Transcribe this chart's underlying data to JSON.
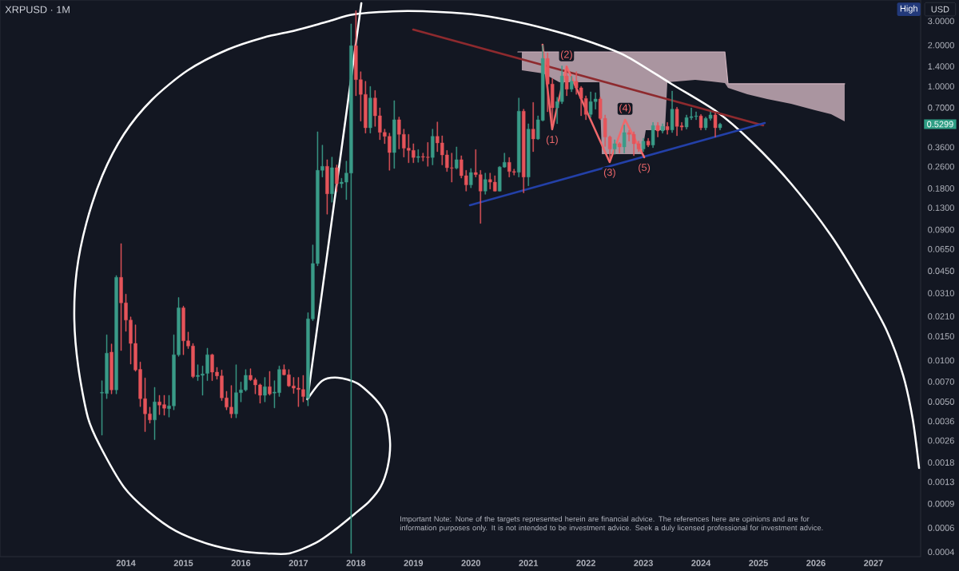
{
  "chart_data": {
    "type": "candlestick",
    "title": "XRPUSD · 1M",
    "xlim": [
      "2011-10-23",
      "2027-10-27"
    ],
    "ylim": [
      0.00037,
      4.27
    ],
    "log": true,
    "xticks": [
      "2014",
      "2015",
      "2016",
      "2017",
      "2018",
      "2019",
      "2020",
      "2021",
      "2022",
      "2023",
      "2024",
      "2025",
      "2026",
      "2027"
    ],
    "yticks": [
      {
        "value": 0.0004,
        "label": "0.0004"
      },
      {
        "value": 0.0006,
        "label": "0.0006"
      },
      {
        "value": 0.0009,
        "label": "0.0009"
      },
      {
        "value": 0.0013,
        "label": "0.0013"
      },
      {
        "value": 0.0018,
        "label": "0.0018"
      },
      {
        "value": 0.0026,
        "label": "0.0026"
      },
      {
        "value": 0.0036,
        "label": "0.0036"
      },
      {
        "value": 0.005,
        "label": "0.0050"
      },
      {
        "value": 0.007,
        "label": "0.0070"
      },
      {
        "value": 0.01,
        "label": "0.0100"
      },
      {
        "value": 0.015,
        "label": "0.0150"
      },
      {
        "value": 0.021,
        "label": "0.0210"
      },
      {
        "value": 0.031,
        "label": "0.0310"
      },
      {
        "value": 0.045,
        "label": "0.0450"
      },
      {
        "value": 0.065,
        "label": "0.0650"
      },
      {
        "value": 0.09,
        "label": "0.0900"
      },
      {
        "value": 0.13,
        "label": "0.1300"
      },
      {
        "value": 0.18,
        "label": "0.1800"
      },
      {
        "value": 0.26,
        "label": "0.2600"
      },
      {
        "value": 0.36,
        "label": "0.3600"
      },
      {
        "value": 0.7,
        "label": "0.7000"
      },
      {
        "value": 1,
        "label": "1.0000"
      },
      {
        "value": 1.4,
        "label": "1.4000"
      },
      {
        "value": 2,
        "label": "2.0000"
      },
      {
        "value": 3,
        "label": "3.0000"
      }
    ],
    "series": [
      {
        "type": "line",
        "color": "#d0b4bf",
        "x": [
          "2020-10-25",
          "2020-11-20",
          "2021-04-05",
          "2021-07-15",
          "2022-03-26",
          "2022-04-11",
          "2022-12-21",
          "2023-01-16",
          "2023-05-16",
          "2023-05-31",
          "2023-11-26",
          "2024-03-06",
          "2024-06-01",
          "2024-06-21",
          "2024-10-21",
          "2025-02-26",
          "2025-07-26",
          "2025-12-26",
          "2026-04-06",
          "2026-07-01"
        ],
        "values": [
          1.785,
          1.785,
          1.785,
          1.785,
          1.785,
          1.785,
          1.785,
          1.785,
          1.785,
          1.785,
          1.785,
          1.785,
          1.785,
          1.044,
          1.044,
          1.044,
          1.044,
          1.044,
          1.044,
          1.044
        ],
        "upper": [
          null,
          1.785,
          1.785,
          1.785,
          1.785,
          1.785,
          1.785,
          1.785,
          1.785,
          1.785,
          1.785,
          1.785,
          1.785,
          1.044,
          1.044,
          1.044,
          1.044,
          1.044,
          1.044,
          1.044
        ],
        "lower": [
          null,
          1.311,
          1.243,
          1.072,
          1.072,
          0.3205,
          0.3205,
          0.479,
          0.479,
          1.072,
          1.116,
          1.087,
          1.058,
          0.976,
          0.877,
          0.809,
          0.746,
          0.671,
          0.627,
          0.556
        ]
      },
      {
        "type": "line",
        "color": "#ffffff",
        "x": [
          "2017-02-28",
          "2017-05-29",
          "2017-09-09",
          "2018-01-09",
          "2018-05-04",
          "2018-07-09",
          "2018-08-05",
          "2018-07-20",
          "2018-06-05",
          "2018-03-25",
          "2018-01-09",
          "2017-08-24",
          "2017-04-19",
          "2016-11-04",
          "2016-06-14",
          "2015-12-24",
          "2015-06-04",
          "2014-11-14",
          "2014-05-19",
          "2013-12-19",
          "2013-07-18",
          "2013-05-03",
          "2013-03-03",
          "2013-02-08",
          "2013-02-23",
          "2013-04-23",
          "2013-08-03",
          "2013-12-19",
          "2014-06-14",
          "2015-01-29",
          "2015-10-09",
          "2016-05-24",
          "2016-12-14",
          "2017-07-04",
          "2017-12-19",
          "2018-10-05",
          "2019-06-15",
          "2020-02-25",
          "2020-11-05",
          "2021-07-05",
          "2022-02-05",
          "2022-09-11",
          "2023-06-26",
          "2024-04-11",
          "2024-11-16",
          "2025-07-26",
          "2026-04-06",
          "2026-10-27",
          "2027-03-27",
          "2027-07-07",
          "2027-09-07",
          "2027-10-17"
        ],
        "values": [
          0.00521,
          0.00709,
          0.00748,
          0.00681,
          0.00521,
          0.00398,
          0.00249,
          0.00167,
          0.00119,
          0.000935,
          0.000786,
          0.000585,
          0.000465,
          0.000391,
          0.000391,
          0.000407,
          0.000459,
          0.000569,
          0.000796,
          0.00119,
          0.00239,
          0.00383,
          0.00891,
          0.0199,
          0.0446,
          0.0997,
          0.223,
          0.448,
          0.798,
          1.311,
          1.858,
          2.274,
          2.566,
          2.973,
          3.355,
          3.54,
          3.493,
          3.311,
          2.934,
          2.497,
          2.097,
          1.669,
          1.044,
          0.653,
          0.397,
          0.195,
          0.0815,
          0.0341,
          0.0163,
          0.00779,
          0.00373,
          0.00164
        ]
      },
      {
        "type": "line",
        "color": "#ffffff",
        "x": [
          "2017-02-28",
          "2018-02-05"
        ],
        "values": [
          0.00521,
          4.047
        ]
      },
      {
        "type": "line",
        "color": "#8e2a2e",
        "x": [
          "2018-12-30",
          "2025-02-01"
        ],
        "values": [
          2.598,
          0.5195
        ]
      },
      {
        "type": "line",
        "color": "#2340a8",
        "x": [
          "2019-12-25",
          "2025-02-11"
        ],
        "values": [
          0.1358,
          0.541
        ]
      },
      {
        "type": "line",
        "color": "#f0686b",
        "x": [
          "2021-03-30",
          "2021-05-30",
          "2021-08-30",
          "2022-05-30",
          "2022-09-06",
          "2023-01-06"
        ],
        "values": [
          2.015,
          0.486,
          1.403,
          0.28,
          0.571,
          0.304
        ]
      },
      {
        "x": [
          "2013-08",
          "2013-09",
          "2013-10",
          "2013-11",
          "2013-12",
          "2014-01",
          "2014-02",
          "2014-03",
          "2014-04",
          "2014-05",
          "2014-06",
          "2014-07",
          "2014-08",
          "2014-09",
          "2014-10",
          "2014-11",
          "2014-12",
          "2015-01",
          "2015-02",
          "2015-03",
          "2015-04",
          "2015-05",
          "2015-06",
          "2015-07",
          "2015-08",
          "2015-09",
          "2015-10",
          "2015-11",
          "2015-12",
          "2016-01",
          "2016-02",
          "2016-03",
          "2016-04",
          "2016-05",
          "2016-06",
          "2016-07",
          "2016-08",
          "2016-09",
          "2016-10",
          "2016-11",
          "2016-12",
          "2017-01",
          "2017-02",
          "2017-03",
          "2017-04",
          "2017-05",
          "2017-06",
          "2017-07",
          "2017-08",
          "2017-09",
          "2017-10",
          "2017-11",
          "2017-12",
          "2018-01",
          "2018-02",
          "2018-03",
          "2018-04",
          "2018-05",
          "2018-06",
          "2018-07",
          "2018-08",
          "2018-09",
          "2018-10",
          "2018-11",
          "2018-12",
          "2019-01",
          "2019-02",
          "2019-03",
          "2019-04",
          "2019-05",
          "2019-06",
          "2019-07",
          "2019-08",
          "2019-09",
          "2019-10",
          "2019-11",
          "2019-12",
          "2020-01",
          "2020-02",
          "2020-03",
          "2020-04",
          "2020-05",
          "2020-06",
          "2020-07",
          "2020-08",
          "2020-09",
          "2020-10",
          "2020-11",
          "2020-12",
          "2021-01",
          "2021-02",
          "2021-03",
          "2021-04",
          "2021-05",
          "2021-06",
          "2021-07",
          "2021-08",
          "2021-09",
          "2021-10",
          "2021-11",
          "2021-12",
          "2022-01",
          "2022-02",
          "2022-03",
          "2022-04",
          "2022-05",
          "2022-06",
          "2022-07",
          "2022-08",
          "2022-09",
          "2022-10",
          "2022-11",
          "2022-12",
          "2023-01",
          "2023-02",
          "2023-03",
          "2023-04",
          "2023-05",
          "2023-06",
          "2023-07",
          "2023-08",
          "2023-09",
          "2023-10",
          "2023-11",
          "2023-12",
          "2024-01",
          "2024-02",
          "2024-03",
          "2024-04",
          "2024-05"
        ],
        "ohlc": [
          [
            0.00578,
            0.00712,
            0.00285,
            0.00585
          ],
          [
            0.00574,
            0.0154,
            0.00526,
            0.0113
          ],
          [
            0.0115,
            0.0132,
            0.0057,
            0.0061
          ],
          [
            0.0061,
            0.0417,
            0.0057,
            0.0404
          ],
          [
            0.0404,
            0.0713,
            0.0118,
            0.0263
          ],
          [
            0.0263,
            0.0305,
            0.0163,
            0.0197
          ],
          [
            0.0197,
            0.0208,
            0.0094,
            0.0133
          ],
          [
            0.0133,
            0.0182,
            0.00833,
            0.00852
          ],
          [
            0.0086,
            0.00975,
            0.0046,
            0.00526
          ],
          [
            0.00526,
            0.00746,
            0.00302,
            0.00408
          ],
          [
            0.00408,
            0.00456,
            0.00348,
            0.00368
          ],
          [
            0.00368,
            0.00637,
            0.00264,
            0.00498
          ],
          [
            0.00498,
            0.00557,
            0.00402,
            0.00472
          ],
          [
            0.00476,
            0.00557,
            0.00398,
            0.00448
          ],
          [
            0.00445,
            0.00557,
            0.00386,
            0.00466
          ],
          [
            0.00466,
            0.0154,
            0.00436,
            0.011
          ],
          [
            0.011,
            0.0288,
            0.0107,
            0.0242
          ],
          [
            0.0242,
            0.0249,
            0.011,
            0.0139
          ],
          [
            0.0139,
            0.0161,
            0.0122,
            0.01275
          ],
          [
            0.01275,
            0.0133,
            0.00746,
            0.00762
          ],
          [
            0.00762,
            0.00931,
            0.00712,
            0.00779
          ],
          [
            0.00779,
            0.00912,
            0.00557,
            0.00797
          ],
          [
            0.00805,
            0.0123,
            0.00712,
            0.011
          ],
          [
            0.011,
            0.01115,
            0.00712,
            0.00822
          ],
          [
            0.00822,
            0.00891,
            0.00729,
            0.00772
          ],
          [
            0.00772,
            0.00852,
            0.00509,
            0.00533
          ],
          [
            0.00533,
            0.00596,
            0.00436,
            0.00456
          ],
          [
            0.00456,
            0.00657,
            0.00381,
            0.00408
          ],
          [
            0.00408,
            0.00931,
            0.00381,
            0.00582
          ],
          [
            0.00582,
            0.00697,
            0.00498,
            0.0061
          ],
          [
            0.0061,
            0.00859,
            0.00596,
            0.00779
          ],
          [
            0.00779,
            0.00871,
            0.00712,
            0.00722
          ],
          [
            0.00722,
            0.00746,
            0.0057,
            0.00663
          ],
          [
            0.00663,
            0.00675,
            0.00487,
            0.00557
          ],
          [
            0.00557,
            0.00752,
            0.00498,
            0.00643
          ],
          [
            0.00643,
            0.00833,
            0.00557,
            0.0057
          ],
          [
            0.00578,
            0.00712,
            0.0045,
            0.00588
          ],
          [
            0.00582,
            0.00912,
            0.00545,
            0.00859
          ],
          [
            0.00859,
            0.00931,
            0.00779,
            0.00786
          ],
          [
            0.00786,
            0.00859,
            0.00643,
            0.00652
          ],
          [
            0.00652,
            0.00752,
            0.00574,
            0.00628
          ],
          [
            0.00628,
            0.00752,
            0.0046,
            0.00614
          ],
          [
            0.00614,
            0.00779,
            0.00498,
            0.00545
          ],
          [
            0.00533,
            0.0223,
            0.00466,
            0.0201
          ],
          [
            0.0201,
            0.0697,
            0.0195,
            0.051
          ],
          [
            0.051,
            0.467,
            0.049,
            0.244
          ],
          [
            0.244,
            0.373,
            0.218,
            0.261
          ],
          [
            0.261,
            0.292,
            0.1167,
            0.1645
          ],
          [
            0.1645,
            0.305,
            0.1427,
            0.255
          ],
          [
            0.255,
            0.267,
            0.171,
            0.195
          ],
          [
            0.195,
            0.2135,
            0.182,
            0.2
          ],
          [
            0.2,
            0.285,
            0.149,
            0.233
          ],
          [
            0.233,
            2.86,
            0.00039,
            1.98
          ],
          [
            1.98,
            3.57,
            0.854,
            1.12
          ],
          [
            1.12,
            1.28,
            0.558,
            0.874
          ],
          [
            0.874,
            1.09,
            0.456,
            0.499
          ],
          [
            0.499,
            1.0,
            0.456,
            0.823
          ],
          [
            0.823,
            0.934,
            0.51,
            0.61
          ],
          [
            0.61,
            0.698,
            0.408,
            0.462
          ],
          [
            0.462,
            0.488,
            0.382,
            0.432
          ],
          [
            0.432,
            0.456,
            0.244,
            0.329
          ],
          [
            0.329,
            0.788,
            0.252,
            0.571
          ],
          [
            0.571,
            0.597,
            0.349,
            0.447
          ],
          [
            0.447,
            0.488,
            0.305,
            0.354
          ],
          [
            0.354,
            0.447,
            0.277,
            0.341
          ],
          [
            0.341,
            0.382,
            0.277,
            0.303
          ],
          [
            0.303,
            0.346,
            0.279,
            0.308
          ],
          [
            0.308,
            0.326,
            0.285,
            0.305
          ],
          [
            0.305,
            0.39,
            0.261,
            0.303
          ],
          [
            0.303,
            0.488,
            0.267,
            0.432
          ],
          [
            0.432,
            0.55,
            0.334,
            0.387
          ],
          [
            0.387,
            0.436,
            0.267,
            0.316
          ],
          [
            0.316,
            0.341,
            0.239,
            0.255
          ],
          [
            0.255,
            0.326,
            0.2,
            0.253
          ],
          [
            0.253,
            0.362,
            0.249,
            0.292
          ],
          [
            0.292,
            0.312,
            0.214,
            0.223
          ],
          [
            0.223,
            0.244,
            0.172,
            0.191
          ],
          [
            0.191,
            0.252,
            0.182,
            0.235
          ],
          [
            0.235,
            0.346,
            0.218,
            0.227
          ],
          [
            0.227,
            0.244,
            0.1,
            0.172
          ],
          [
            0.172,
            0.233,
            0.163,
            0.209
          ],
          [
            0.209,
            0.233,
            0.178,
            0.2
          ],
          [
            0.2,
            0.223,
            0.171,
            0.172
          ],
          [
            0.172,
            0.261,
            0.171,
            0.258
          ],
          [
            0.258,
            0.326,
            0.255,
            0.279
          ],
          [
            0.279,
            0.303,
            0.218,
            0.239
          ],
          [
            0.239,
            0.249,
            0.225,
            0.236
          ],
          [
            0.236,
            0.823,
            0.218,
            0.659
          ],
          [
            0.659,
            0.682,
            0.167,
            0.218
          ],
          [
            0.218,
            0.534,
            0.188,
            0.488
          ],
          [
            0.488,
            0.764,
            0.334,
            0.414
          ],
          [
            0.414,
            0.61,
            0.408,
            0.571
          ],
          [
            0.565,
            2.0,
            0.558,
            1.6
          ],
          [
            1.6,
            1.76,
            0.653,
            1.04
          ],
          [
            1.04,
            1.14,
            0.534,
            0.698
          ],
          [
            0.698,
            0.834,
            0.534,
            0.774
          ],
          [
            0.774,
            1.41,
            0.746,
            1.19
          ],
          [
            1.19,
            1.4,
            0.854,
            0.954
          ],
          [
            0.954,
            1.19,
            0.913,
            1.09
          ],
          [
            1.09,
            1.28,
            0.874,
            0.976
          ],
          [
            0.976,
            1.0,
            0.61,
            0.817
          ],
          [
            0.817,
            0.854,
            0.571,
            0.624
          ],
          [
            0.624,
            0.913,
            0.597,
            0.774
          ],
          [
            0.774,
            0.9,
            0.682,
            0.809
          ],
          [
            0.809,
            0.834,
            0.571,
            0.584
          ],
          [
            0.584,
            0.619,
            0.365,
            0.427
          ],
          [
            0.427,
            0.436,
            0.294,
            0.349
          ],
          [
            0.349,
            0.408,
            0.319,
            0.382
          ],
          [
            0.382,
            0.39,
            0.326,
            0.362
          ],
          [
            0.362,
            0.522,
            0.326,
            0.46
          ],
          [
            0.46,
            0.478,
            0.399,
            0.447
          ],
          [
            0.447,
            0.467,
            0.312,
            0.382
          ],
          [
            0.382,
            0.399,
            0.334,
            0.349
          ],
          [
            0.349,
            0.418,
            0.334,
            0.399
          ],
          [
            0.399,
            0.418,
            0.362,
            0.373
          ],
          [
            0.373,
            0.546,
            0.357,
            0.518
          ],
          [
            0.518,
            0.546,
            0.427,
            0.473
          ],
          [
            0.473,
            0.534,
            0.456,
            0.51
          ],
          [
            0.51,
            0.546,
            0.447,
            0.481
          ],
          [
            0.481,
            0.925,
            0.46,
            0.682
          ],
          [
            0.682,
            0.705,
            0.436,
            0.51
          ],
          [
            0.515,
            0.546,
            0.478,
            0.505
          ],
          [
            0.505,
            0.619,
            0.488,
            0.592
          ],
          [
            0.592,
            0.698,
            0.571,
            0.602
          ],
          [
            0.602,
            0.653,
            0.571,
            0.608
          ],
          [
            0.608,
            0.624,
            0.481,
            0.499
          ],
          [
            0.499,
            0.597,
            0.481,
            0.584
          ],
          [
            0.584,
            0.653,
            0.565,
            0.619
          ],
          [
            0.619,
            0.638,
            0.427,
            0.499
          ],
          [
            0.499,
            0.541,
            0.481,
            0.5299
          ]
        ],
        "colors": [
          "#3a9b88",
          "#3a9b88",
          "#e6545a",
          "#3a9b88",
          "#e6545a",
          "#e6545a",
          "#e6545a",
          "#e6545a",
          "#e6545a",
          "#e6545a",
          "#e6545a",
          "#3a9b88",
          "#e6545a",
          "#e6545a",
          "#3a9b88",
          "#3a9b88",
          "#3a9b88",
          "#e6545a",
          "#e6545a",
          "#e6545a",
          "#3a9b88",
          "#3a9b88",
          "#3a9b88",
          "#e6545a",
          "#e6545a",
          "#e6545a",
          "#e6545a",
          "#e6545a",
          "#3a9b88",
          "#3a9b88",
          "#3a9b88",
          "#e6545a",
          "#e6545a",
          "#e6545a",
          "#3a9b88",
          "#e6545a",
          "#3a9b88",
          "#3a9b88",
          "#e6545a",
          "#e6545a",
          "#e6545a",
          "#e6545a",
          "#e6545a",
          "#3a9b88",
          "#3a9b88",
          "#3a9b88",
          "#3a9b88",
          "#e6545a",
          "#3a9b88",
          "#e6545a",
          "#3a9b88",
          "#3a9b88",
          "#3a9b88",
          "#e6545a",
          "#e6545a",
          "#e6545a",
          "#3a9b88",
          "#e6545a",
          "#e6545a",
          "#e6545a",
          "#e6545a",
          "#3a9b88",
          "#e6545a",
          "#e6545a",
          "#e6545a",
          "#e6545a",
          "#3a9b88",
          "#e6545a",
          "#e6545a",
          "#3a9b88",
          "#e6545a",
          "#e6545a",
          "#e6545a",
          "#e6545a",
          "#3a9b88",
          "#e6545a",
          "#e6545a",
          "#3a9b88",
          "#e6545a",
          "#e6545a",
          "#3a9b88",
          "#e6545a",
          "#e6545a",
          "#3a9b88",
          "#3a9b88",
          "#e6545a",
          "#e6545a",
          "#3a9b88",
          "#e6545a",
          "#3a9b88",
          "#e6545a",
          "#3a9b88",
          "#3a9b88",
          "#e6545a",
          "#e6545a",
          "#3a9b88",
          "#3a9b88",
          "#e6545a",
          "#3a9b88",
          "#e6545a",
          "#e6545a",
          "#e6545a",
          "#3a9b88",
          "#3a9b88",
          "#e6545a",
          "#e6545a",
          "#e6545a",
          "#3a9b88",
          "#e6545a",
          "#3a9b88",
          "#e6545a",
          "#e6545a",
          "#e6545a",
          "#3a9b88",
          "#e6545a",
          "#3a9b88",
          "#e6545a",
          "#3a9b88",
          "#e6545a",
          "#3a9b88",
          "#e6545a",
          "#e6545a",
          "#3a9b88",
          "#3a9b88",
          "#3a9b88",
          "#e6545a",
          "#3a9b88",
          "#3a9b88",
          "#e6545a",
          "#3a9b88"
        ]
      }
    ],
    "annotations": [
      {
        "text": "(1)",
        "x": "2021-05-30",
        "y": 0.486
      },
      {
        "text": "(2)",
        "x": "2021-08-30",
        "y": 1.403
      },
      {
        "text": "(3)",
        "x": "2022-05-30",
        "y": 0.28
      },
      {
        "text": "(4)",
        "x": "2022-09-06",
        "y": 0.571
      },
      {
        "text": "(5)",
        "x": "2023-01-06",
        "y": 0.304
      },
      "0.5299",
      "High",
      "USD",
      "Important Note: None of the targets represented herein are financial advice. The references here are opinions and are for information purposes only. It is not intended to be investment advice. Seek a duly licensed professional for investment advice."
    ]
  }
}
